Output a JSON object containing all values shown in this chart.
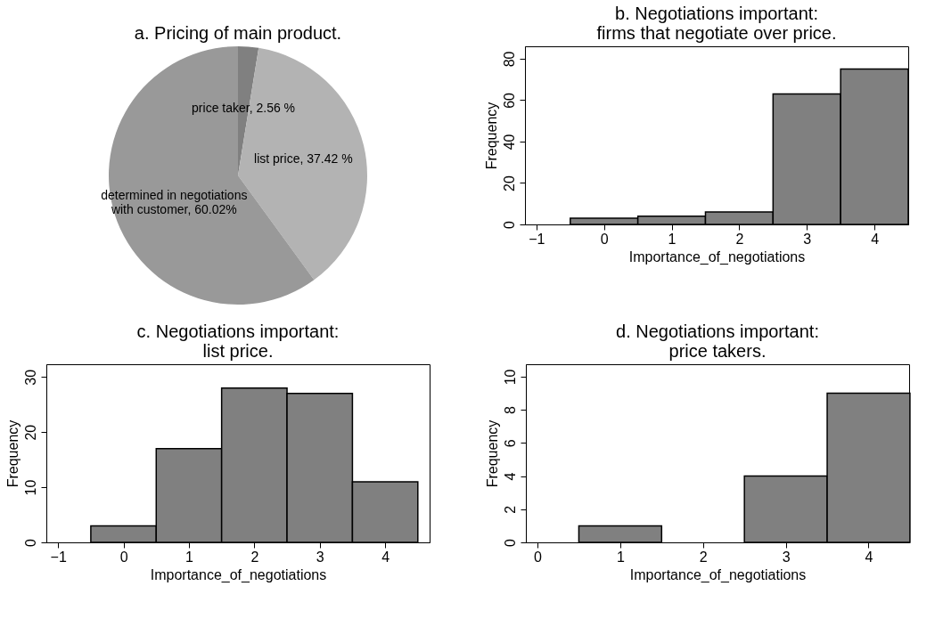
{
  "chart_data": [
    {
      "type": "pie",
      "title": "a. Pricing of main product.",
      "categories": [
        "price taker",
        "list price",
        "determined in negotiations with customer"
      ],
      "values": [
        2.56,
        37.42,
        60.02
      ],
      "value_labels": [
        "2.56 %",
        "37.42 %",
        "60.02%"
      ],
      "colors": [
        "#808080",
        "#b3b3b3",
        "#999999"
      ],
      "legend": false
    },
    {
      "type": "histogram",
      "title": "b. Negotiations important: firms that negotiate over price.",
      "xlabel": "Importance_of_negotiations",
      "ylabel": "Frequency",
      "bins": [
        -0.5,
        0.5,
        1.5,
        2.5,
        3.5,
        4.5
      ],
      "values": [
        3,
        4,
        6,
        63,
        75
      ],
      "color": "#808080",
      "xlim": [
        -1.17,
        4.5
      ],
      "xticks": [
        -1,
        0,
        1,
        2,
        3,
        4
      ],
      "ylim": [
        0,
        86
      ],
      "yticks": [
        0,
        20,
        40,
        60,
        80
      ],
      "grid": false
    },
    {
      "type": "histogram",
      "title": "c. Negotiations important: list price.",
      "xlabel": "Importance_of_negotiations",
      "ylabel": "Frequency",
      "bins": [
        -0.5,
        0.5,
        1.5,
        2.5,
        3.5,
        4.5
      ],
      "values": [
        3,
        17,
        28,
        27,
        11
      ],
      "color": "#808080",
      "xlim": [
        -1.18,
        4.68
      ],
      "xticks": [
        -1,
        0,
        1,
        2,
        3,
        4
      ],
      "ylim": [
        0,
        32.3
      ],
      "yticks": [
        0,
        10,
        20,
        30
      ],
      "grid": false
    },
    {
      "type": "histogram",
      "title": "d. Negotiations important: price takers.",
      "xlabel": "Importance_of_negotiations",
      "ylabel": "Frequency",
      "bins": [
        0.5,
        1.5,
        2.5,
        3.5,
        4.5
      ],
      "values": [
        1,
        0,
        4,
        9
      ],
      "color": "#808080",
      "xlim": [
        -0.14,
        4.49
      ],
      "xticks": [
        0,
        1,
        2,
        3,
        4
      ],
      "ylim": [
        0,
        10.75
      ],
      "yticks": [
        0,
        2,
        4,
        6,
        8,
        10
      ],
      "grid": false
    }
  ]
}
